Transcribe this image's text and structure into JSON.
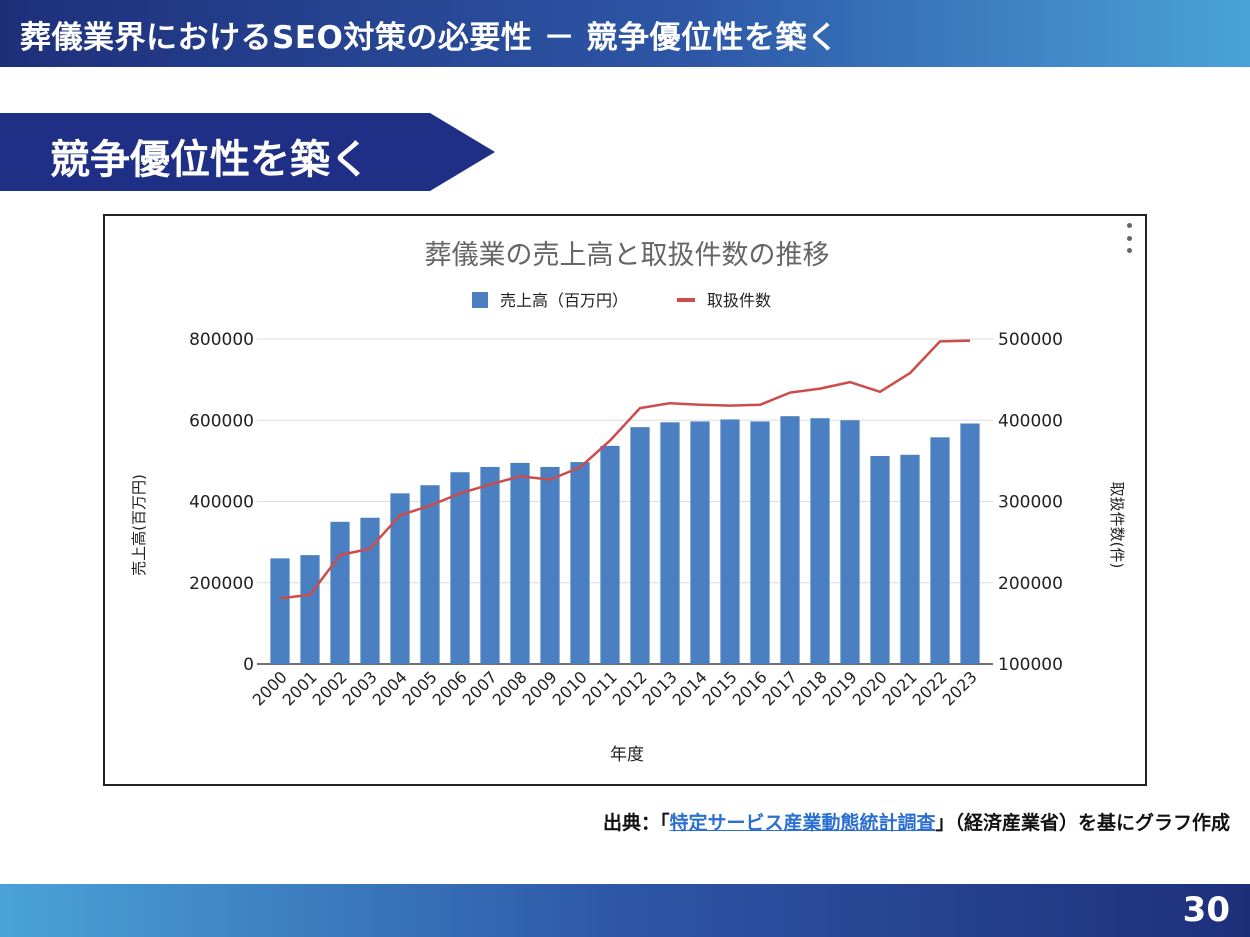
{
  "header": {
    "title": "葬儀業界におけるSEO対策の必要性 － 競争優位性を築く"
  },
  "section": {
    "title": "競争優位性を築く"
  },
  "chart_data": {
    "type": "bar+line",
    "title": "葬儀業の売上高と取扱件数の推移",
    "categories": [
      "2000",
      "2001",
      "2002",
      "2003",
      "2004",
      "2005",
      "2006",
      "2007",
      "2008",
      "2009",
      "2010",
      "2011",
      "2012",
      "2013",
      "2014",
      "2015",
      "2016",
      "2017",
      "2018",
      "2019",
      "2020",
      "2021",
      "2022",
      "2023"
    ],
    "series": [
      {
        "name": "売上高（百万円）",
        "kind": "bar",
        "axis": "left",
        "color": "#4a7fc1",
        "values": [
          260000,
          268000,
          350000,
          360000,
          420000,
          440000,
          472000,
          485000,
          495000,
          485000,
          497000,
          537000,
          583000,
          595000,
          597000,
          602000,
          597000,
          610000,
          605000,
          600000,
          512000,
          515000,
          558000,
          592000
        ]
      },
      {
        "name": "取扱件数",
        "kind": "line",
        "axis": "right",
        "color": "#cc4c4c",
        "values": [
          181000,
          185000,
          234000,
          242000,
          283000,
          295000,
          310000,
          321000,
          331000,
          327000,
          342000,
          375000,
          415000,
          421000,
          419000,
          418000,
          419000,
          434000,
          439000,
          447000,
          435000,
          458000,
          497000,
          498000
        ]
      }
    ],
    "xlabel": "年度",
    "ylabel_left": "売上高(百万円)",
    "ylabel_right": "取扱件数(件)",
    "ylim_left": [
      0,
      800000
    ],
    "ylim_right": [
      100000,
      500000
    ],
    "yticks_left": [
      "0",
      "200000",
      "400000",
      "600000",
      "800000"
    ],
    "yticks_right": [
      "100000",
      "200000",
      "300000",
      "400000",
      "500000"
    ],
    "legend_position": "top-center",
    "grid": true
  },
  "source": {
    "prefix": "出典：「",
    "link_text": "特定サービス産業動態統計調査",
    "suffix": "」（経済産業省）を基にグラフ作成"
  },
  "footer": {
    "page_number": "30"
  }
}
